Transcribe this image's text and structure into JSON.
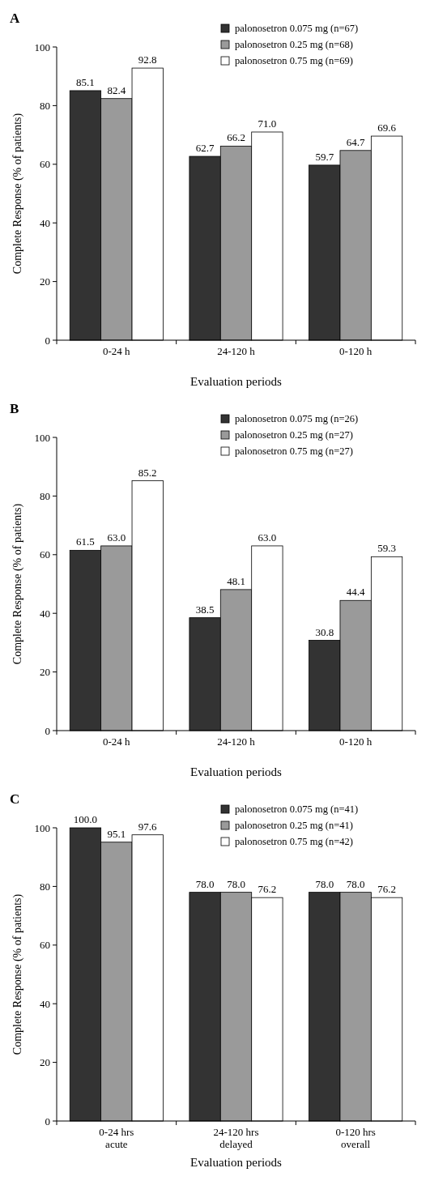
{
  "chart_data": [
    {
      "type": "bar",
      "title": "A",
      "xlabel": "Evaluation periods",
      "ylabel": "Complete Response (% of patients)",
      "categories": [
        "0-24 h",
        "24-120 h",
        "0-120 h"
      ],
      "ylim": [
        0,
        100
      ],
      "yticks": [
        0,
        20,
        40,
        60,
        80,
        100
      ],
      "legend": "top right",
      "series": [
        {
          "name": "palonosetron 0.075 mg (n=67)",
          "color": "#333333",
          "values": [
            85.1,
            62.7,
            59.7
          ],
          "value_labels": [
            "85.1",
            "62.7",
            "59.7"
          ]
        },
        {
          "name": "palonosetron 0.25 mg (n=68)",
          "color": "#9a9a9a",
          "values": [
            82.4,
            66.2,
            64.7
          ],
          "value_labels": [
            "82.4",
            "66.2",
            "64.7"
          ]
        },
        {
          "name": "palonosetron 0.75 mg (n=69)",
          "color": "#ffffff",
          "values": [
            92.8,
            71.0,
            69.6
          ],
          "value_labels": [
            "92.8",
            "71.0",
            "69.6"
          ]
        }
      ]
    },
    {
      "type": "bar",
      "title": "B",
      "xlabel": "Evaluation periods",
      "ylabel": "Complete Response (% of patients)",
      "categories": [
        "0-24 h",
        "24-120 h",
        "0-120 h"
      ],
      "ylim": [
        0,
        100
      ],
      "yticks": [
        0,
        20,
        40,
        60,
        80,
        100
      ],
      "legend": "top right",
      "series": [
        {
          "name": "palonosetron 0.075 mg (n=26)",
          "color": "#333333",
          "values": [
            61.5,
            38.5,
            30.8
          ],
          "value_labels": [
            "61.5",
            "38.5",
            "30.8"
          ]
        },
        {
          "name": "palonosetron 0.25 mg (n=27)",
          "color": "#9a9a9a",
          "values": [
            63.0,
            48.1,
            44.4
          ],
          "value_labels": [
            "63.0",
            "48.1",
            "44.4"
          ]
        },
        {
          "name": "palonosetron 0.75 mg (n=27)",
          "color": "#ffffff",
          "values": [
            85.2,
            63.0,
            59.3
          ],
          "value_labels": [
            "85.2",
            "63.0",
            "59.3"
          ]
        }
      ]
    },
    {
      "type": "bar",
      "title": "C",
      "xlabel": "Evaluation periods",
      "ylabel": "Complete Response (% of patients)",
      "categories": [
        "0-24 hrs\nacute",
        "24-120 hrs\ndelayed",
        "0-120 hrs\noverall"
      ],
      "ylim": [
        0,
        100
      ],
      "yticks": [
        0,
        20,
        40,
        60,
        80,
        100
      ],
      "legend": "top right",
      "series": [
        {
          "name": "palonosetron 0.075 mg (n=41)",
          "color": "#333333",
          "values": [
            100.0,
            78.0,
            78.0
          ],
          "value_labels": [
            "100.0",
            "78.0",
            "78.0"
          ]
        },
        {
          "name": "palonosetron 0.25 mg (n=41)",
          "color": "#9a9a9a",
          "values": [
            95.1,
            78.0,
            78.0
          ],
          "value_labels": [
            "95.1",
            "78.0",
            "78.0"
          ]
        },
        {
          "name": "palonosetron 0.75 mg (n=42)",
          "color": "#ffffff",
          "values": [
            97.6,
            76.2,
            76.2
          ],
          "value_labels": [
            "97.6",
            "76.2",
            "76.2"
          ]
        }
      ]
    }
  ]
}
